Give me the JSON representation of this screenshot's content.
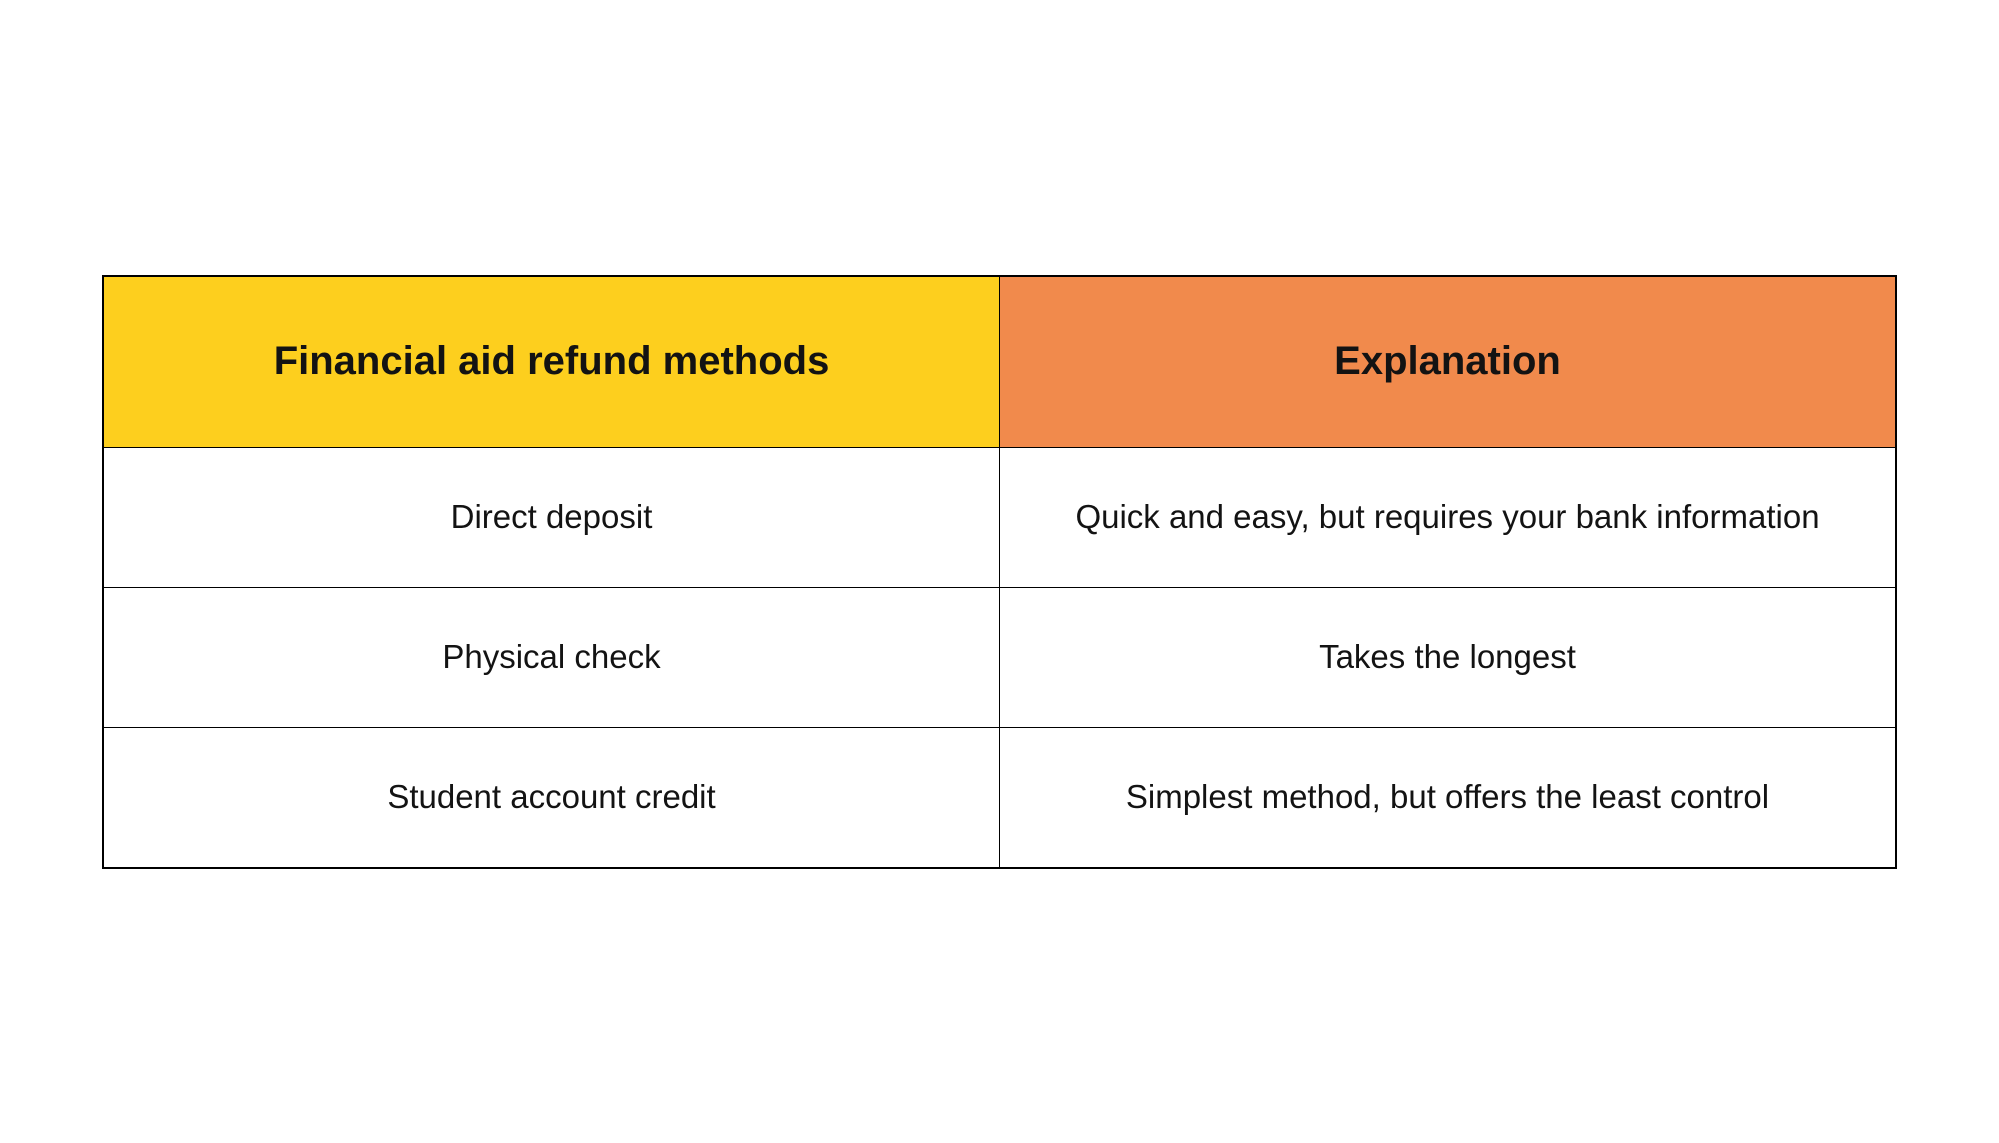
{
  "table": {
    "type": "table",
    "columns": [
      {
        "label": "Financial aid refund methods",
        "bg_color": "#fdcf1e"
      },
      {
        "label": "Explanation",
        "bg_color": "#f18a4c"
      }
    ],
    "rows": [
      [
        "Direct deposit",
        "Quick and easy, but requires your bank information"
      ],
      [
        "Physical check",
        "Takes the longest"
      ],
      [
        "Student account credit",
        "Simplest method, but offers the least control"
      ]
    ],
    "border_color": "#000000",
    "background_color": "#ffffff",
    "header_fontsize": 40,
    "header_fontweight": 600,
    "cell_fontsize": 33,
    "cell_fontweight": 400,
    "text_color": "#131313",
    "header_row_height": 172,
    "body_row_height": 140
  }
}
